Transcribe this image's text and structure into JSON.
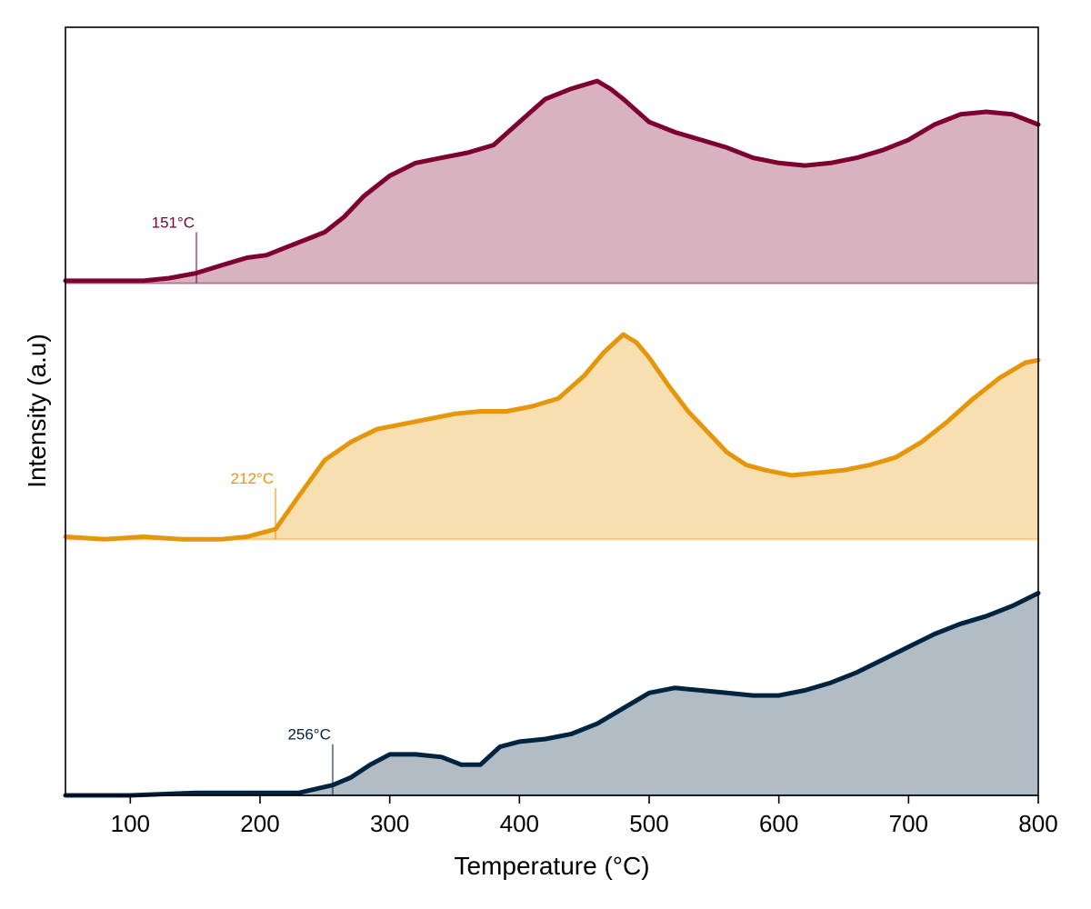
{
  "chart_data": {
    "type": "area",
    "xlabel": "Temperature (°C)",
    "ylabel": "Intensity (a.u)",
    "xlim": [
      50,
      800
    ],
    "xticks": [
      100,
      200,
      300,
      400,
      500,
      600,
      700,
      800
    ],
    "ylim": [
      0,
      3
    ],
    "grid": false,
    "series": [
      {
        "color": "#7d0033",
        "fill": "#d9b2c0",
        "offset": 2,
        "onset": 151,
        "onset_label": "151°C",
        "points": [
          [
            50,
            0.01
          ],
          [
            80,
            0.01
          ],
          [
            110,
            0.01
          ],
          [
            130,
            0.02
          ],
          [
            151,
            0.04
          ],
          [
            170,
            0.07
          ],
          [
            190,
            0.1
          ],
          [
            205,
            0.11
          ],
          [
            220,
            0.14
          ],
          [
            240,
            0.18
          ],
          [
            250,
            0.2
          ],
          [
            265,
            0.26
          ],
          [
            280,
            0.34
          ],
          [
            300,
            0.42
          ],
          [
            320,
            0.47
          ],
          [
            340,
            0.49
          ],
          [
            360,
            0.51
          ],
          [
            380,
            0.54
          ],
          [
            400,
            0.63
          ],
          [
            420,
            0.72
          ],
          [
            440,
            0.76
          ],
          [
            460,
            0.79
          ],
          [
            470,
            0.76
          ],
          [
            480,
            0.72
          ],
          [
            500,
            0.63
          ],
          [
            520,
            0.59
          ],
          [
            540,
            0.56
          ],
          [
            560,
            0.53
          ],
          [
            580,
            0.49
          ],
          [
            600,
            0.47
          ],
          [
            620,
            0.46
          ],
          [
            640,
            0.47
          ],
          [
            660,
            0.49
          ],
          [
            680,
            0.52
          ],
          [
            700,
            0.56
          ],
          [
            720,
            0.62
          ],
          [
            740,
            0.66
          ],
          [
            760,
            0.67
          ],
          [
            780,
            0.66
          ],
          [
            800,
            0.62
          ]
        ]
      },
      {
        "color": "#e6960a",
        "fill": "#f7dfb0",
        "offset": 1,
        "onset": 212,
        "onset_label": "212°C",
        "points": [
          [
            50,
            0.01
          ],
          [
            80,
            0.0
          ],
          [
            110,
            0.01
          ],
          [
            140,
            0.0
          ],
          [
            170,
            0.0
          ],
          [
            190,
            0.01
          ],
          [
            212,
            0.04
          ],
          [
            230,
            0.17
          ],
          [
            250,
            0.31
          ],
          [
            270,
            0.38
          ],
          [
            290,
            0.43
          ],
          [
            310,
            0.45
          ],
          [
            330,
            0.47
          ],
          [
            350,
            0.49
          ],
          [
            370,
            0.5
          ],
          [
            390,
            0.5
          ],
          [
            410,
            0.52
          ],
          [
            430,
            0.55
          ],
          [
            450,
            0.64
          ],
          [
            465,
            0.73
          ],
          [
            480,
            0.8
          ],
          [
            490,
            0.77
          ],
          [
            500,
            0.71
          ],
          [
            515,
            0.6
          ],
          [
            530,
            0.5
          ],
          [
            545,
            0.42
          ],
          [
            560,
            0.34
          ],
          [
            575,
            0.29
          ],
          [
            590,
            0.27
          ],
          [
            610,
            0.25
          ],
          [
            630,
            0.26
          ],
          [
            650,
            0.27
          ],
          [
            670,
            0.29
          ],
          [
            690,
            0.32
          ],
          [
            710,
            0.38
          ],
          [
            730,
            0.46
          ],
          [
            750,
            0.55
          ],
          [
            770,
            0.63
          ],
          [
            790,
            0.69
          ],
          [
            800,
            0.7
          ]
        ]
      },
      {
        "color": "#002440",
        "fill": "#b2bcc4",
        "offset": 0,
        "onset": 256,
        "onset_label": "256°C",
        "points": [
          [
            50,
            0.0
          ],
          [
            100,
            0.0
          ],
          [
            150,
            0.01
          ],
          [
            200,
            0.01
          ],
          [
            230,
            0.01
          ],
          [
            256,
            0.04
          ],
          [
            270,
            0.07
          ],
          [
            285,
            0.12
          ],
          [
            300,
            0.16
          ],
          [
            320,
            0.16
          ],
          [
            340,
            0.15
          ],
          [
            355,
            0.12
          ],
          [
            370,
            0.12
          ],
          [
            385,
            0.19
          ],
          [
            400,
            0.21
          ],
          [
            420,
            0.22
          ],
          [
            440,
            0.24
          ],
          [
            460,
            0.28
          ],
          [
            480,
            0.34
          ],
          [
            500,
            0.4
          ],
          [
            520,
            0.42
          ],
          [
            540,
            0.41
          ],
          [
            560,
            0.4
          ],
          [
            580,
            0.39
          ],
          [
            600,
            0.39
          ],
          [
            620,
            0.41
          ],
          [
            640,
            0.44
          ],
          [
            660,
            0.48
          ],
          [
            680,
            0.53
          ],
          [
            700,
            0.58
          ],
          [
            720,
            0.63
          ],
          [
            740,
            0.67
          ],
          [
            760,
            0.7
          ],
          [
            780,
            0.74
          ],
          [
            800,
            0.79
          ]
        ]
      }
    ]
  }
}
